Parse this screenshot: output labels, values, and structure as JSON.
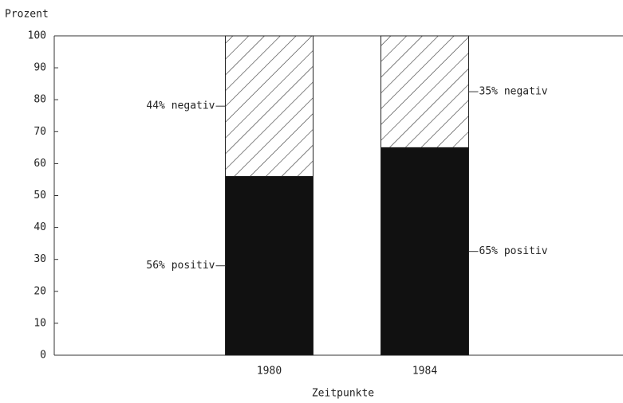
{
  "chart_data": {
    "type": "stacked_bar",
    "y_label": "Prozent",
    "x_label": "Zeitpunkte",
    "categories": [
      "1980",
      "1984"
    ],
    "series": [
      {
        "name": "positiv",
        "color": "#111111",
        "values": [
          56,
          65
        ],
        "value_labels": [
          "56% positiv",
          "65% positiv"
        ]
      },
      {
        "name": "negativ",
        "color": "hatch",
        "values": [
          44,
          35
        ],
        "value_labels": [
          "44% negativ",
          "35% negativ"
        ]
      }
    ],
    "ylim": [
      0,
      100
    ],
    "yticks": [
      0,
      10,
      20,
      30,
      40,
      50,
      60,
      70,
      80,
      90,
      100
    ]
  }
}
